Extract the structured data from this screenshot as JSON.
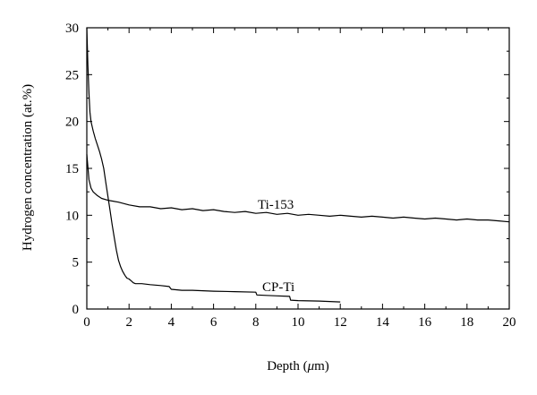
{
  "chart_data": {
    "type": "line",
    "xlabel_prefix": "Depth (",
    "xlabel_unit": "μ",
    "xlabel_suffix": "m)",
    "ylabel": "Hydrogen concentration (at.%)",
    "xlim": [
      0,
      20
    ],
    "ylim": [
      0,
      30
    ],
    "xticks": [
      "0",
      "2",
      "4",
      "6",
      "8",
      "10",
      "12",
      "14",
      "16",
      "18",
      "20"
    ],
    "yticks": [
      "0",
      "5",
      "10",
      "15",
      "20",
      "25",
      "30"
    ],
    "grid": false,
    "series": [
      {
        "name": "Ti-153",
        "x": [
          0,
          0.1,
          0.2,
          0.3,
          0.5,
          0.7,
          1.0,
          1.5,
          2.0,
          2.5,
          3.0,
          3.5,
          4.0,
          4.5,
          5.0,
          5.5,
          6.0,
          6.5,
          7.0,
          7.5,
          8.0,
          8.5,
          9.0,
          9.5,
          10.0,
          10.5,
          11.0,
          11.5,
          12.0,
          12.5,
          13.0,
          13.5,
          14.0,
          14.5,
          15.0,
          15.5,
          16.0,
          16.5,
          17.0,
          17.5,
          18.0,
          18.5,
          19.0,
          19.5,
          20.0
        ],
        "y": [
          16.5,
          13.8,
          12.9,
          12.5,
          12.1,
          11.8,
          11.6,
          11.4,
          11.1,
          10.9,
          10.9,
          10.7,
          10.8,
          10.6,
          10.7,
          10.5,
          10.6,
          10.4,
          10.3,
          10.4,
          10.2,
          10.3,
          10.1,
          10.2,
          10.0,
          10.1,
          10.0,
          9.9,
          10.0,
          9.9,
          9.8,
          9.9,
          9.8,
          9.7,
          9.8,
          9.7,
          9.6,
          9.7,
          9.6,
          9.5,
          9.6,
          9.5,
          9.5,
          9.4,
          9.3
        ]
      },
      {
        "name": "CP-Ti",
        "x": [
          0,
          0.05,
          0.1,
          0.15,
          0.2,
          0.3,
          0.4,
          0.5,
          0.6,
          0.7,
          0.8,
          0.9,
          1.0,
          1.1,
          1.2,
          1.3,
          1.4,
          1.5,
          1.6,
          1.7,
          1.8,
          1.9,
          2.0,
          2.1,
          2.2,
          2.3,
          2.4,
          2.6,
          3.0,
          3.5,
          3.9,
          4.0,
          4.5,
          5.0,
          6.0,
          7.0,
          8.0,
          8.05,
          8.5,
          9.0,
          9.6,
          9.65,
          10.0,
          11.0,
          12.0
        ],
        "y": [
          30.0,
          26.0,
          23.0,
          21.0,
          20.0,
          19.0,
          18.2,
          17.5,
          16.8,
          16.0,
          15.0,
          13.5,
          12.0,
          10.5,
          9.0,
          7.6,
          6.3,
          5.2,
          4.5,
          4.0,
          3.6,
          3.3,
          3.2,
          3.0,
          2.8,
          2.7,
          2.7,
          2.7,
          2.6,
          2.5,
          2.4,
          2.1,
          2.0,
          2.0,
          1.9,
          1.85,
          1.8,
          1.5,
          1.45,
          1.4,
          1.35,
          0.95,
          0.9,
          0.85,
          0.75
        ]
      }
    ]
  }
}
